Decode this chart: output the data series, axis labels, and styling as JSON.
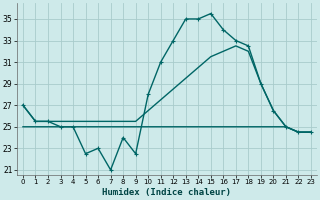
{
  "xlabel": "Humidex (Indice chaleur)",
  "background_color": "#ceeaea",
  "grid_color": "#a8cccc",
  "line_color": "#006666",
  "xlim": [
    -0.5,
    23.5
  ],
  "ylim": [
    20.5,
    36.5
  ],
  "yticks": [
    21,
    23,
    25,
    27,
    29,
    31,
    33,
    35
  ],
  "xticks": [
    0,
    1,
    2,
    3,
    4,
    5,
    6,
    7,
    8,
    9,
    10,
    11,
    12,
    13,
    14,
    15,
    16,
    17,
    18,
    19,
    20,
    21,
    22,
    23
  ],
  "series1_x": [
    0,
    1,
    2,
    3,
    4,
    5,
    6,
    7,
    8,
    9,
    10,
    11,
    12,
    13,
    14,
    15,
    16,
    17,
    18,
    19,
    20,
    21,
    22,
    23
  ],
  "series1_y": [
    27,
    25.5,
    25.5,
    25,
    25,
    22.5,
    23,
    21,
    24,
    22.5,
    28,
    31,
    33,
    35,
    35,
    35.5,
    34,
    33,
    32.5,
    29,
    26.5,
    25,
    24.5,
    24.5
  ],
  "series2_x": [
    0,
    1,
    2,
    3,
    4,
    5,
    6,
    7,
    8,
    9,
    10,
    11,
    12,
    13,
    14,
    15,
    16,
    17,
    18,
    19,
    20,
    21,
    22,
    23
  ],
  "series2_y": [
    27,
    25.5,
    25.5,
    25.5,
    25.5,
    25.5,
    25.5,
    25.5,
    25.5,
    25.5,
    26.5,
    27.5,
    28.5,
    29.5,
    30.5,
    31.5,
    32,
    32.5,
    32,
    29,
    26.5,
    25,
    24.5,
    24.5
  ],
  "series3_x": [
    0,
    1,
    2,
    3,
    4,
    5,
    6,
    7,
    8,
    9,
    10,
    11,
    12,
    13,
    14,
    15,
    16,
    17,
    18,
    19,
    20,
    21,
    22,
    23
  ],
  "series3_y": [
    25,
    25,
    25,
    25,
    25,
    25,
    25,
    25,
    25,
    25,
    25,
    25,
    25,
    25,
    25,
    25,
    25,
    25,
    25,
    25,
    25,
    25,
    24.5,
    24.5
  ]
}
